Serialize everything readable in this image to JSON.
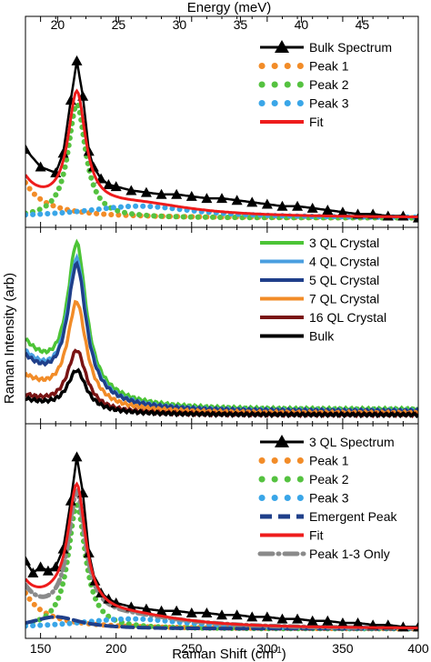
{
  "figure": {
    "top_axis_label": "Energy (meV)",
    "bottom_axis_label": "Raman Shift (cm",
    "bottom_axis_label_sup": "-1",
    "bottom_axis_label_close": ")",
    "y_axis_label": "Raman Intensity (arb)"
  },
  "chart_data": [
    {
      "type": "line",
      "panel": "top",
      "x_unit": "cm-1",
      "xlim": [
        140,
        400
      ],
      "x_ticks": [],
      "top_axis": {
        "label": "Energy (meV)",
        "ticks": [
          20,
          25,
          30,
          35,
          40,
          45
        ]
      },
      "ylim": [
        0,
        1
      ],
      "y_tick_labels": false,
      "legend_position": "top-right",
      "peaks": [
        {
          "name": "Peak 1",
          "center": 118,
          "amp": 0.9,
          "width": 11,
          "color": "#f28c28",
          "style": "dotted"
        },
        {
          "name": "Peak 2",
          "center": 174,
          "amp": 0.58,
          "width": 7,
          "color": "#55c240",
          "style": "dotted"
        },
        {
          "name": "Peak 3",
          "center": 215,
          "amp": 0.06,
          "width": 45,
          "color": "#3aa6e8",
          "style": "dotted"
        }
      ],
      "series": [
        {
          "name": "Bulk Spectrum",
          "color": "#000000",
          "style": "triangles",
          "x": [
            140,
            150,
            160,
            165,
            170,
            174,
            178,
            182,
            185,
            190,
            195,
            200,
            210,
            220,
            230,
            240,
            250,
            260,
            270,
            280,
            290,
            300,
            310,
            320,
            330,
            340,
            350,
            360,
            370,
            380,
            390,
            400
          ],
          "y": [
            0.37,
            0.28,
            0.25,
            0.35,
            0.62,
            0.82,
            0.64,
            0.36,
            0.28,
            0.22,
            0.19,
            0.18,
            0.16,
            0.15,
            0.14,
            0.14,
            0.13,
            0.12,
            0.12,
            0.11,
            0.1,
            0.09,
            0.08,
            0.08,
            0.07,
            0.06,
            0.05,
            0.04,
            0.04,
            0.03,
            0.03,
            0.02
          ]
        },
        {
          "name": "Fit",
          "color": "#ee1c1c",
          "style": "solid",
          "baseline": 0.02
        }
      ]
    },
    {
      "type": "line",
      "panel": "middle",
      "x_unit": "cm-1",
      "xlim": [
        140,
        400
      ],
      "x_ticks": [],
      "ylim": [
        0,
        1
      ],
      "y_tick_labels": false,
      "legend_position": "top-right",
      "series": [
        {
          "name": "3 QL Crystal",
          "color": "#4cc436",
          "base": 0.4,
          "peak": 0.93,
          "tail": 0.05
        },
        {
          "name": "4 QL Crystal",
          "color": "#4a9fe0",
          "base": 0.34,
          "peak": 0.85,
          "tail": 0.04
        },
        {
          "name": "5 QL Crystal",
          "color": "#1f3f8a",
          "base": 0.32,
          "peak": 0.82,
          "tail": 0.04
        },
        {
          "name": "7 QL Crystal",
          "color": "#f28c28",
          "base": 0.22,
          "peak": 0.62,
          "tail": 0.03
        },
        {
          "name": "16 QL Crystal",
          "color": "#7a1414",
          "base": 0.12,
          "peak": 0.36,
          "tail": 0.02
        },
        {
          "name": "Bulk",
          "color": "#000000",
          "base": 0.1,
          "peak": 0.25,
          "tail": 0.02
        }
      ]
    },
    {
      "type": "line",
      "panel": "bottom",
      "x_unit": "cm-1",
      "xlim": [
        140,
        400
      ],
      "x_ticks": [
        150,
        200,
        250,
        300,
        350,
        400
      ],
      "xlabel": "Raman Shift (cm-1)",
      "ylim": [
        0,
        1
      ],
      "y_tick_labels": false,
      "legend_position": "top-right",
      "peaks": [
        {
          "name": "Peak 1",
          "center": 118,
          "amp": 0.9,
          "width": 11,
          "color": "#f28c28",
          "style": "dotted"
        },
        {
          "name": "Peak 2",
          "center": 174,
          "amp": 0.62,
          "width": 7,
          "color": "#55c240",
          "style": "dotted"
        },
        {
          "name": "Peak 3",
          "center": 210,
          "amp": 0.05,
          "width": 45,
          "color": "#3aa6e8",
          "style": "dotted"
        },
        {
          "name": "Emergent Peak",
          "center": 160,
          "amp": 0.06,
          "width": 20,
          "color": "#1f3f8a",
          "style": "dashed"
        }
      ],
      "series": [
        {
          "name": "3 QL Spectrum",
          "color": "#000000",
          "style": "triangles",
          "x": [
            140,
            145,
            150,
            155,
            160,
            165,
            170,
            174,
            178,
            182,
            186,
            190,
            195,
            200,
            210,
            220,
            230,
            240,
            250,
            260,
            270,
            280,
            290,
            300,
            310,
            320,
            330,
            340,
            350,
            360,
            370,
            380,
            390,
            400
          ],
          "y": [
            0.36,
            0.3,
            0.33,
            0.31,
            0.33,
            0.42,
            0.66,
            0.88,
            0.7,
            0.4,
            0.26,
            0.2,
            0.17,
            0.15,
            0.13,
            0.12,
            0.11,
            0.11,
            0.1,
            0.1,
            0.09,
            0.09,
            0.08,
            0.08,
            0.07,
            0.07,
            0.06,
            0.06,
            0.05,
            0.05,
            0.04,
            0.04,
            0.03,
            0.03
          ]
        },
        {
          "name": "Fit",
          "color": "#ee1c1c",
          "style": "solid",
          "baseline": 0.02
        },
        {
          "name": "Peak 1-3 Only",
          "color": "#8a8a8a",
          "style": "dashdot",
          "baseline": 0.02
        }
      ]
    }
  ]
}
